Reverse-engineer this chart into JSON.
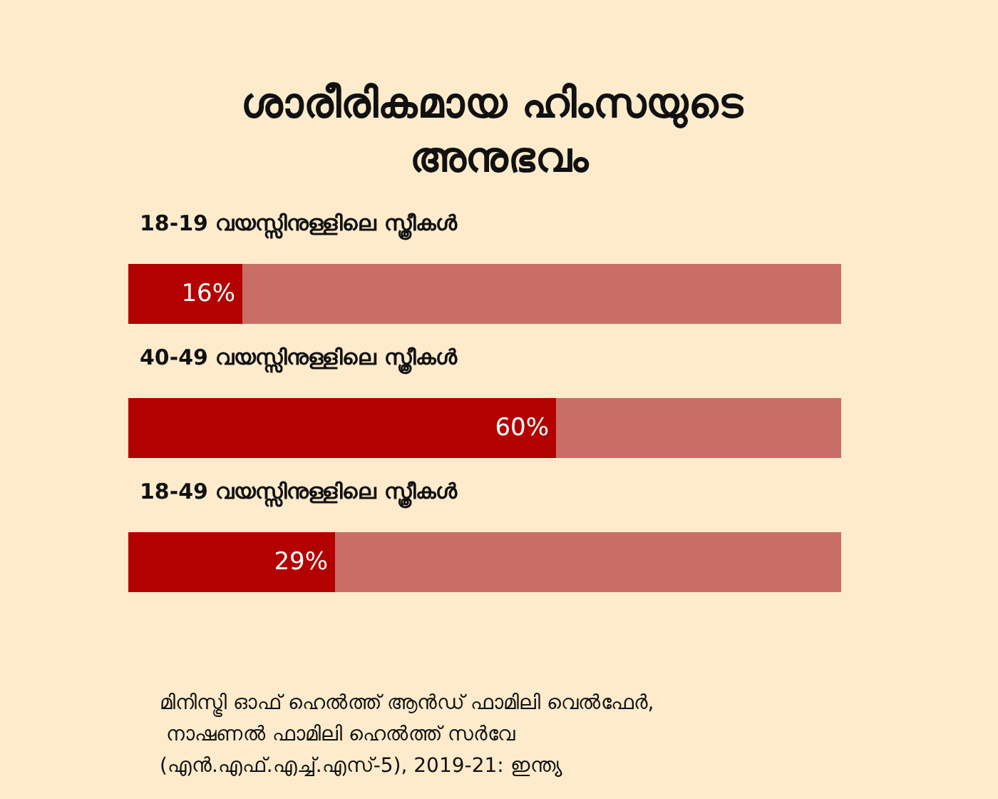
{
  "chart_data": {
    "type": "bar",
    "orientation": "horizontal",
    "stacked": true,
    "title": "ശാരീരികമായ ഹിംസയുടെ അനുഭവം",
    "categories": [
      "18-19 വയസ്സിനുള്ളിലെ സ്ത്രീകൾ",
      "40-49 വയസ്സിനുള്ളിലെ സ്ത്രീകൾ",
      "18-49 വയസ്സിനുള്ളിലെ സ്ത്രീകൾ"
    ],
    "series": [
      {
        "color": "#b30000",
        "values": [
          16,
          60,
          29
        ],
        "value_labels": [
          "16%",
          "60%",
          "29%"
        ]
      },
      {
        "color": "#c96e66",
        "values": [
          84,
          40,
          71
        ]
      }
    ],
    "xlim": [
      0,
      100
    ],
    "tick_labels": "y",
    "annotations": [
      "മിനിസ്ട്രി ഓഫ് ഹെൽത്ത് ആൻഡ് ഫാമിലി വെൽഫേർ, നാഷണൽ ഫാമിലി ഹെൽത്ത് സർവേ (എൻ.എഫ്.എച്ച്.എസ്-5), 2019-21: ഇന്ത്യ"
    ]
  }
}
